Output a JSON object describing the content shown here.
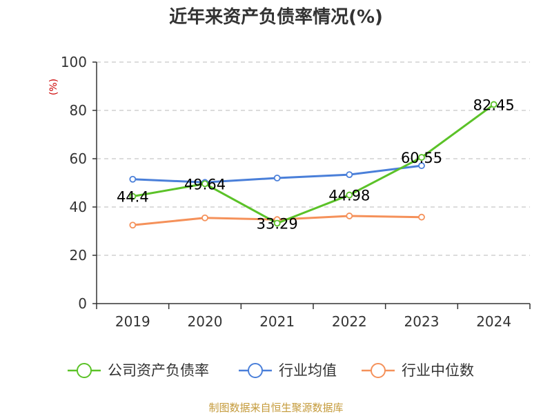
{
  "chart_data": {
    "type": "line",
    "title": "近年来资产负债率情况(%)",
    "ylabel": "(%)",
    "xlabel": "",
    "categories": [
      "2019",
      "2020",
      "2021",
      "2022",
      "2023",
      "2024"
    ],
    "ylim": [
      0,
      100
    ],
    "yticks": [
      0,
      20,
      40,
      60,
      80,
      100
    ],
    "grid": true,
    "legend_position": "bottom",
    "series": [
      {
        "name": "公司资产负债率",
        "color": "#5bc228",
        "values": [
          44.4,
          49.64,
          33.29,
          44.98,
          60.55,
          82.45
        ],
        "labels": [
          "44.4",
          "49.64",
          "33.29",
          "44.98",
          "60.55",
          "82.45"
        ]
      },
      {
        "name": "行业均值",
        "color": "#4a7fd9",
        "values": [
          51.5,
          50.2,
          52.0,
          53.4,
          57.1,
          null
        ]
      },
      {
        "name": "行业中位数",
        "color": "#f5915a",
        "values": [
          32.5,
          35.5,
          34.8,
          36.3,
          35.8,
          null
        ]
      }
    ],
    "source": "制图数据来自恒生聚源数据库"
  }
}
